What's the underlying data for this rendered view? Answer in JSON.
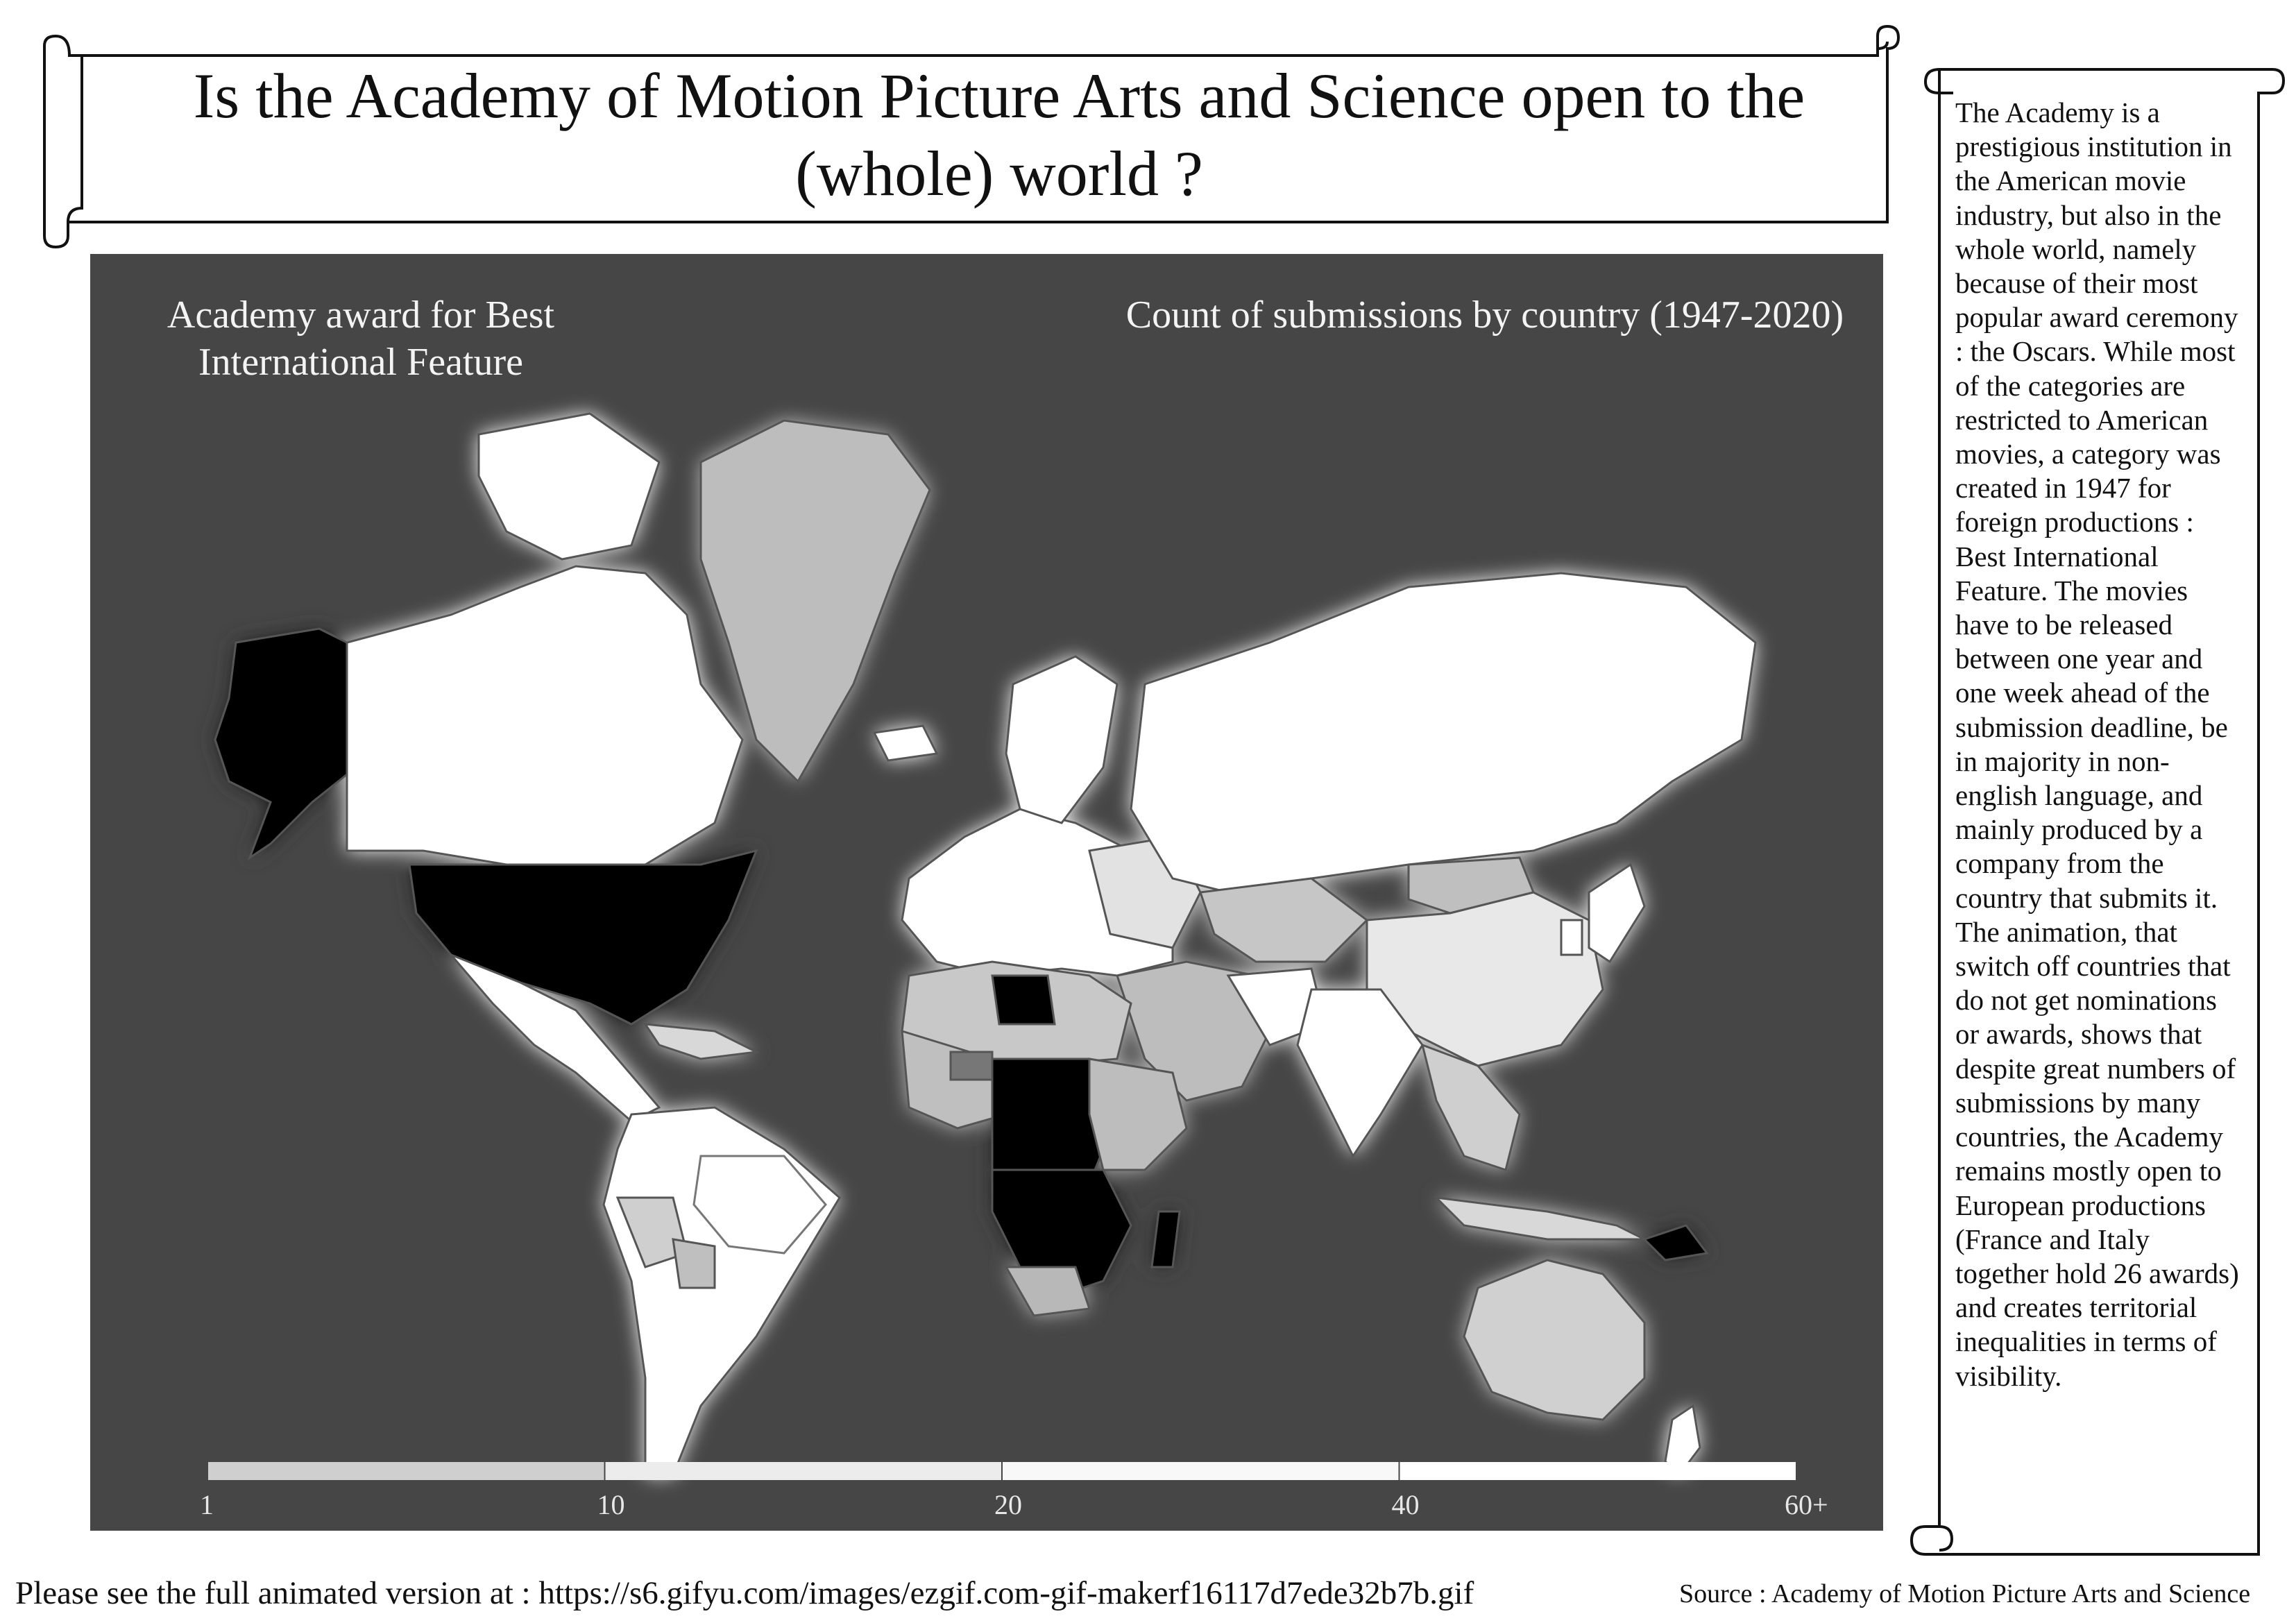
{
  "title": "Is the Academy of Motion Picture Arts and Science open to the (whole) world ?",
  "map": {
    "title_left": "Academy award for Best International Feature",
    "title_right": "Count of submissions by country (1947-2020)",
    "background": "#464646",
    "colors": {
      "black": "#000000",
      "dark": "#5a5a5a",
      "mid": "#a6a6a6",
      "light": "#c8c8c8",
      "pale": "#e6e6e6",
      "white": "#ffffff"
    }
  },
  "chart_data": {
    "type": "choropleth map",
    "measure": "Count of submissions by country (1947-2020)",
    "legend": {
      "type": "color scale",
      "tick_labels": [
        "1",
        "10",
        "20",
        "40",
        "60+"
      ],
      "bins": [
        {
          "from": 1,
          "to": 10,
          "color": "#cfcfcf"
        },
        {
          "from": 10,
          "to": 20,
          "color": "#ececec"
        },
        {
          "from": 20,
          "to": 40,
          "color": "#f8f8f8"
        },
        {
          "from": 40,
          "to": 60,
          "color": "#ffffff"
        }
      ]
    }
  },
  "sidebar": {
    "text": "The Academy is a prestigious institution in the American movie industry, but also in the whole world, namely because of their most popular award ceremony : the Oscars. While most of the categories are restricted to American movies, a category was created in 1947 for foreign productions : Best International Feature. The movies have to be released between one year and one week ahead of the submission deadline, be in majority in non-english language, and mainly produced by a company from the country that submits it. The animation, that switch off countries that do not get nominations or awards, shows that despite great numbers of submissions by many countries, the Academy remains mostly open to European productions (France and Italy together hold 26 awards) and creates territorial inequalities in terms of visibility."
  },
  "footer": {
    "note": "Please see the full animated version at : https://s6.gifyu.com/images/ezgif.com-gif-makerf16117d7ede32b7b.gif",
    "source": "Source : Academy of Motion Picture Arts and Science"
  }
}
